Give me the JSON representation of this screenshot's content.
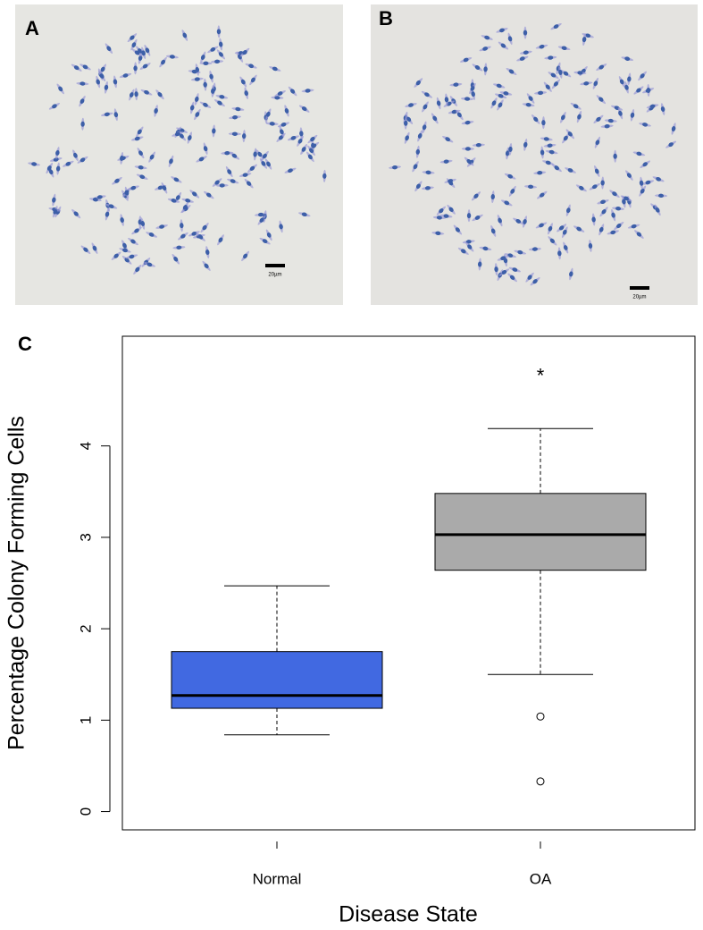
{
  "panels": {
    "a": {
      "label": "A",
      "scale_bar": "20µm"
    },
    "b": {
      "label": "B",
      "scale_bar": "20µm"
    },
    "c": {
      "label": "C"
    }
  },
  "chart_data": {
    "type": "box",
    "x_label": "Disease State",
    "y_label": "Percentage Colony Forming Cells",
    "categories": [
      "Normal",
      "OA"
    ],
    "boxes": [
      {
        "low": 0.84,
        "q1": 1.13,
        "median": 1.27,
        "q3": 1.75,
        "high": 2.47,
        "outliers": [],
        "color": "#4169e1"
      },
      {
        "low": 1.5,
        "q1": 2.64,
        "median": 3.03,
        "q3": 3.48,
        "high": 4.19,
        "outliers": [
          1.04,
          0.33
        ],
        "color": "#aaaaaa"
      }
    ],
    "annotations": [
      {
        "text": "*",
        "category": 1,
        "y": 4.79
      }
    ],
    "ylim": [
      -0.2,
      5.2
    ],
    "yticks": [
      0,
      1,
      2,
      3,
      4
    ]
  }
}
